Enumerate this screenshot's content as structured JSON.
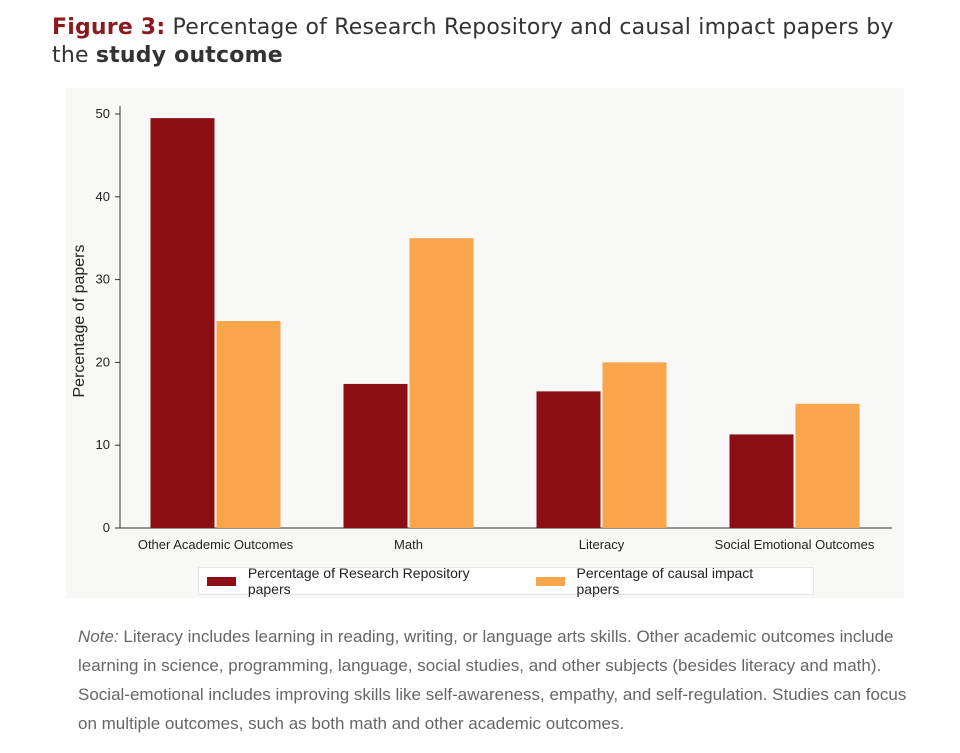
{
  "title": {
    "label": "Figure 3:",
    "text_before": " Percentage of Research Repository and causal impact papers by the ",
    "emphasis": "study outcome"
  },
  "chart_data": {
    "type": "bar",
    "title": "",
    "xlabel": "",
    "ylabel": "Percentage of papers",
    "categories": [
      "Other Academic Outcomes",
      "Math",
      "Literacy",
      "Social Emotional Outcomes"
    ],
    "series": [
      {
        "name": "Percentage of Research Repository papers",
        "color": "#8b0e14",
        "values": [
          49.5,
          17.4,
          16.5,
          11.3
        ]
      },
      {
        "name": "Percentage of causal impact papers",
        "color": "#f9a54b",
        "values": [
          25,
          35,
          20,
          15
        ]
      }
    ],
    "ylim": [
      0,
      50
    ],
    "yticks": [
      0,
      10,
      20,
      30,
      40,
      50
    ],
    "grid": false,
    "legend_position": "bottom-center"
  },
  "note": {
    "label": "Note:",
    "text": " Literacy includes learning in reading, writing, or language arts skills. Other academic outcomes include learning in science, programming, language, social studies, and other subjects (besides literacy and math). Social-emotional includes improving skills like self-awareness, empathy, and self-regulation. Studies can focus on multiple outcomes, such as both math and other academic outcomes."
  }
}
